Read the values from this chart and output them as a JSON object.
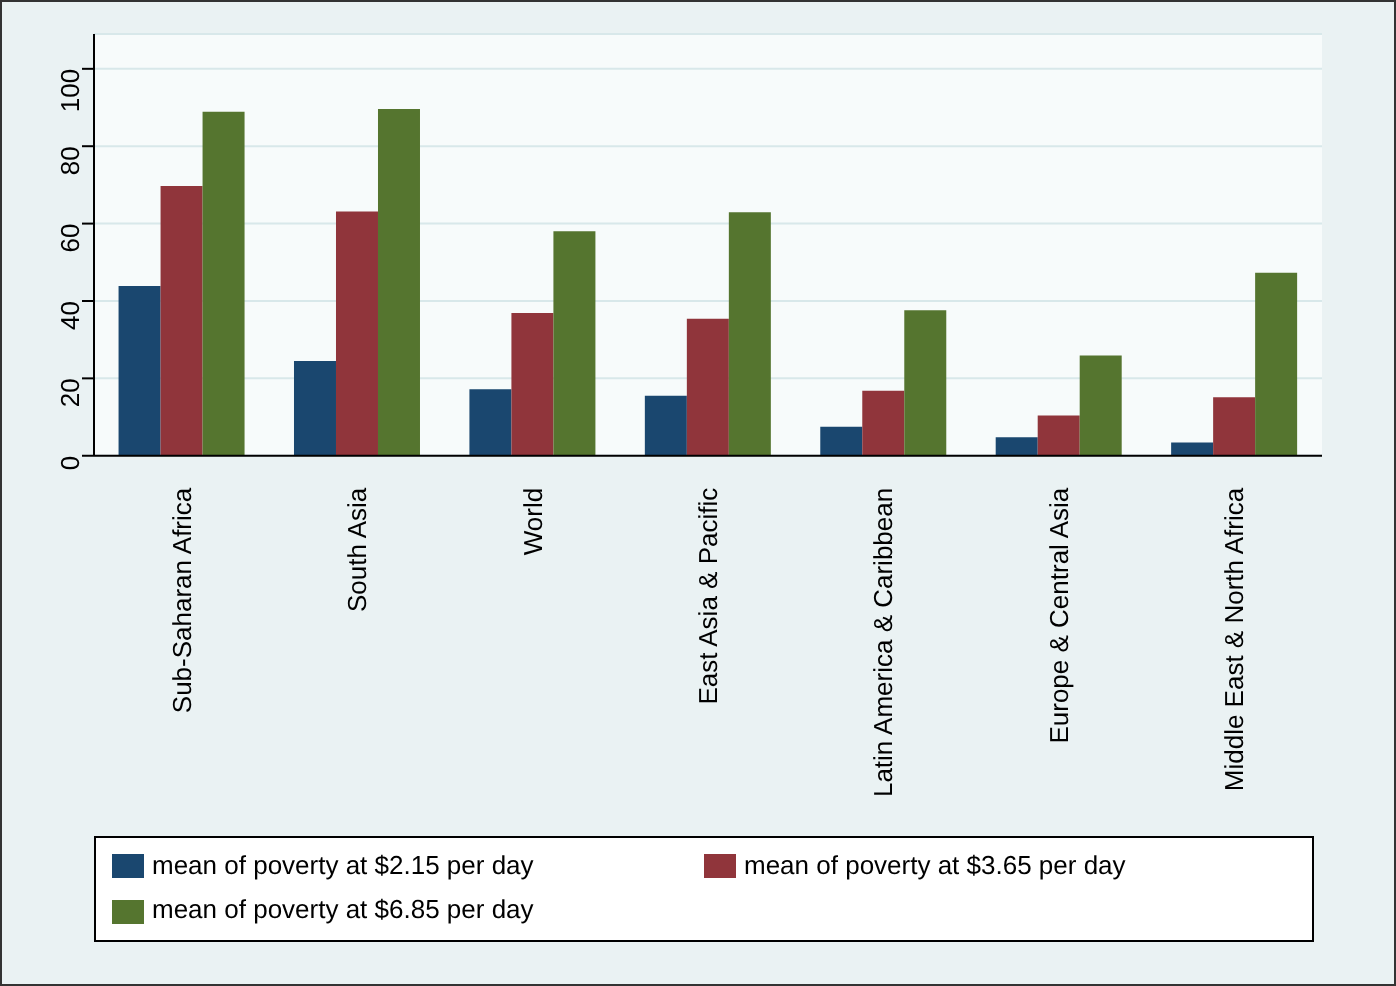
{
  "chart_data": {
    "type": "bar",
    "categories": [
      "Sub-Saharan Africa",
      "South Asia",
      "World",
      "East Asia & Pacific",
      "Latin America & Caribbean",
      "Europe & Central Asia",
      "Middle East & North Africa"
    ],
    "series": [
      {
        "name": "mean of poverty at $2.15 per day",
        "color": "#1a476f",
        "values": [
          43.9,
          24.5,
          17.2,
          15.5,
          7.5,
          4.8,
          3.4
        ]
      },
      {
        "name": "mean of poverty at $3.65 per day",
        "color": "#90353b",
        "values": [
          69.7,
          63.1,
          36.9,
          35.4,
          16.8,
          10.4,
          15.1
        ]
      },
      {
        "name": "mean of poverty at $6.85 per day",
        "color": "#55752f",
        "values": [
          88.9,
          89.6,
          58.0,
          62.9,
          37.6,
          25.9,
          47.3
        ]
      }
    ],
    "ylim": [
      0,
      109
    ],
    "yticks": [
      0,
      20,
      40,
      60,
      80,
      100
    ],
    "grid": "y",
    "legend": "bottom"
  }
}
